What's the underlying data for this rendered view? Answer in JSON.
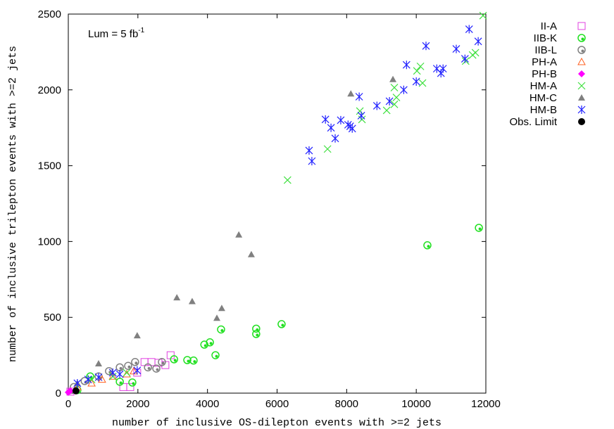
{
  "chart_data": {
    "type": "scatter",
    "xlabel": "number of inclusive OS-dilepton events with >=2 jets",
    "ylabel": "number of inclusive trilepton events with >=2 jets",
    "annotation": "Lum = 5 fb",
    "annotation_sup": "-1",
    "xlim": [
      0,
      12000
    ],
    "xticks": [
      0,
      2000,
      4000,
      6000,
      8000,
      10000,
      12000
    ],
    "ylim": [
      0,
      2500
    ],
    "yticks": [
      0,
      500,
      1000,
      1500,
      2000,
      2500
    ],
    "legend": "outside-right",
    "series": [
      {
        "name": "II-A",
        "color": "#e040e0",
        "marker": "square",
        "x": [
          1580,
          1780,
          2190,
          2390,
          2590,
          2790,
          2940,
          1980,
          60
        ],
        "values": [
          40,
          40,
          205,
          205,
          200,
          185,
          250,
          135,
          10
        ]
      },
      {
        "name": "IIB-K",
        "color": "#20e020",
        "marker": "circle-dot",
        "x": [
          11800,
          10320,
          6130,
          5400,
          5400,
          4390,
          4230,
          4070,
          3910,
          3600,
          3420,
          3040,
          1840,
          630,
          260,
          1480
        ],
        "values": [
          1090,
          975,
          455,
          425,
          390,
          420,
          250,
          335,
          320,
          215,
          218,
          223,
          70,
          110,
          20,
          75
        ]
      },
      {
        "name": "IIB-L",
        "color": "#808080",
        "marker": "circle-dot",
        "x": [
          160,
          470,
          870,
          1170,
          1480,
          1720,
          1920,
          2290,
          2690,
          2530
        ],
        "values": [
          40,
          80,
          110,
          145,
          170,
          180,
          205,
          170,
          205,
          162
        ]
      },
      {
        "name": "PH-A",
        "color": "#ff6020",
        "marker": "triangle",
        "x": [
          260,
          670,
          970,
          1280,
          1680,
          1880
        ],
        "values": [
          40,
          65,
          90,
          110,
          125,
          145
        ]
      },
      {
        "name": "PH-B",
        "color": "#ff00ff",
        "marker": "diamond",
        "x": [
          0,
          60
        ],
        "values": [
          5,
          15
        ]
      },
      {
        "name": "HM-A",
        "color": "#40e040",
        "marker": "cross",
        "x": [
          6300,
          7450,
          8380,
          8440,
          9150,
          9370,
          9430,
          9370,
          10020,
          10120,
          10180,
          11420,
          11620,
          11700,
          11920,
          670,
          1280,
          1680
        ],
        "values": [
          1405,
          1610,
          1860,
          1805,
          1865,
          1905,
          1950,
          2015,
          2125,
          2155,
          2045,
          2190,
          2230,
          2245,
          2490,
          90,
          110,
          135
        ]
      },
      {
        "name": "HM-C",
        "color": "#808080",
        "marker": "triangle-filled",
        "x": [
          870,
          1980,
          3120,
          3560,
          4270,
          4410,
          4900,
          5260,
          8120,
          9330,
          260
        ],
        "values": [
          195,
          380,
          630,
          605,
          495,
          560,
          1045,
          915,
          1975,
          2070,
          65
        ]
      },
      {
        "name": "HM-B",
        "color": "#2020ff",
        "marker": "star",
        "x": [
          6920,
          7000,
          7390,
          7550,
          7670,
          7830,
          8040,
          8100,
          8160,
          8360,
          8420,
          8870,
          9230,
          9640,
          9720,
          10000,
          10280,
          10590,
          10710,
          10770,
          11150,
          11400,
          11520,
          11780,
          260,
          570,
          870,
          1280,
          1980,
          1480
        ],
        "values": [
          1600,
          1530,
          1805,
          1750,
          1680,
          1800,
          1770,
          1760,
          1745,
          1955,
          1830,
          1895,
          1925,
          2000,
          2165,
          2055,
          2290,
          2140,
          2110,
          2140,
          2270,
          2205,
          2400,
          2320,
          65,
          90,
          105,
          135,
          150,
          125
        ]
      },
      {
        "name": "Obs. Limit",
        "color": "#000000",
        "marker": "dot",
        "x": [
          220
        ],
        "values": [
          15
        ]
      }
    ]
  }
}
